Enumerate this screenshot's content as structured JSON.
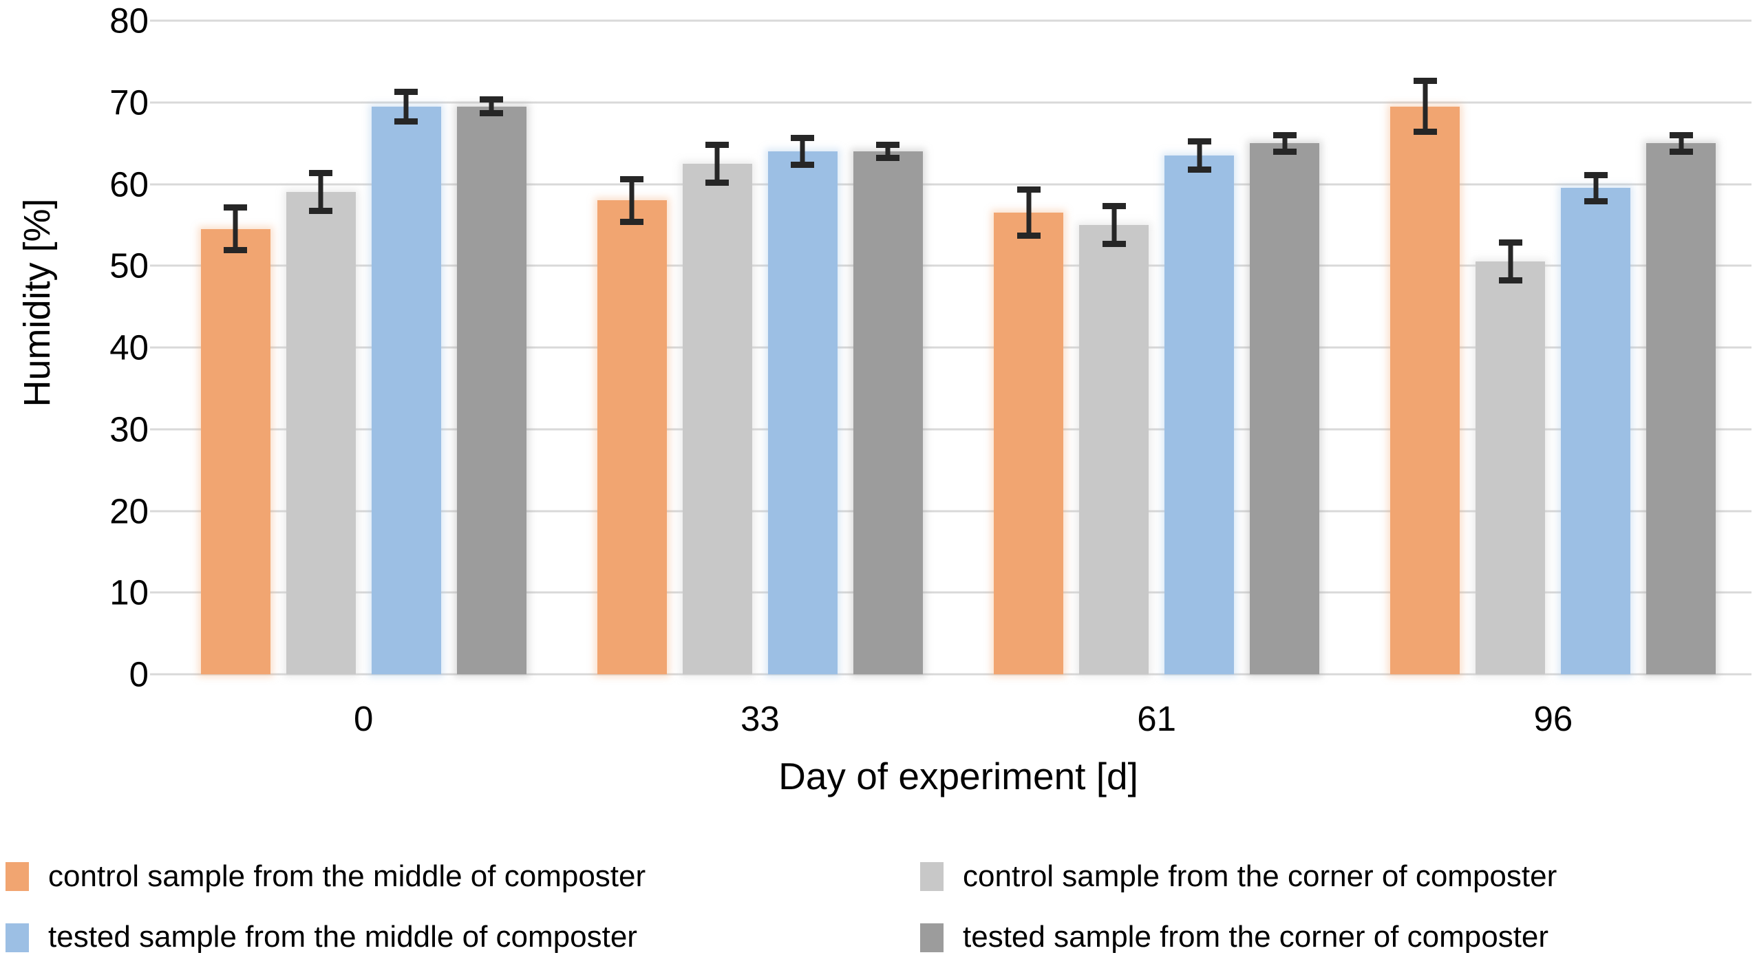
{
  "chart_data": {
    "type": "bar",
    "title": "",
    "xlabel": "Day of experiment [d]",
    "ylabel": "Humidity [%]",
    "categories": [
      "0",
      "33",
      "61",
      "96"
    ],
    "ylim": [
      0,
      80
    ],
    "yticks": [
      0,
      10,
      20,
      30,
      40,
      50,
      60,
      70,
      80
    ],
    "grid": "horizontal",
    "legend_position": "bottom-two-columns",
    "legend_order": [
      0,
      2,
      1,
      3
    ],
    "error_bars": true,
    "series": [
      {
        "name": "control sample from the middle of composter",
        "color": "#F1A571",
        "values": [
          54.5,
          58,
          56.5,
          69.5
        ],
        "errors": [
          3,
          3,
          3.2,
          3.5
        ]
      },
      {
        "name": "control sample from the corner of composter",
        "color": "#C8C8C8",
        "values": [
          59,
          62.5,
          55,
          50.5
        ],
        "errors": [
          2.7,
          2.7,
          2.7,
          2.7
        ]
      },
      {
        "name": "tested sample from the middle of composter",
        "color": "#9CBFE4",
        "values": [
          69.5,
          64,
          63.5,
          59.5
        ],
        "errors": [
          2.2,
          2,
          2.1,
          2
        ]
      },
      {
        "name": "tested sample from the corner of composter",
        "color": "#9C9C9C",
        "values": [
          69.5,
          64,
          65,
          65
        ],
        "errors": [
          1.2,
          1.2,
          1.4,
          1.4
        ]
      }
    ],
    "colors": {
      "error_bar": "#262626",
      "gridline": "#D9D9D9",
      "text": "#000000",
      "background": "#FFFFFF"
    }
  }
}
